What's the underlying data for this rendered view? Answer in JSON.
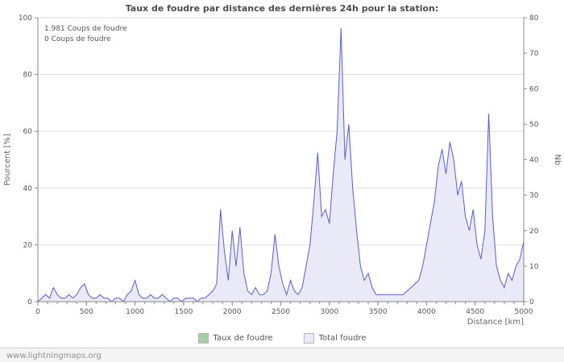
{
  "title": "Taux de foudre par distance des dernières 24h pour la station:",
  "annotations": {
    "line1": "1.981  Coups de foudre",
    "line2": "0  Coups de foudre"
  },
  "legend": [
    {
      "label": "Taux de foudre",
      "color": "#a6cfa6"
    },
    {
      "label": "Total foudre",
      "color": "#e9e9f7"
    }
  ],
  "footer": {
    "link": "www.lightningmaps.org"
  },
  "chart_data": {
    "type": "area",
    "title": "Taux de foudre par distance des dernières 24h pour la station:",
    "xlabel": "Distance   [km]",
    "ylabel_left": "Pourcent   [%]",
    "ylabel_right": "Nb",
    "x_range": [
      0,
      5000
    ],
    "x_tick_step": 500,
    "x_minor_tick_step": 100,
    "y_left_range": [
      0,
      100
    ],
    "y_left_tick_step": 20,
    "y_right_range": [
      0,
      80
    ],
    "y_right_tick_step": 10,
    "grid": true,
    "legend_position": "bottom",
    "colors": {
      "grid": "#dddddd",
      "axis": "#888888"
    },
    "series": [
      {
        "name": "Taux de foudre",
        "axis": "left",
        "color": "#a6cfa6",
        "constant_value": 0
      },
      {
        "name": "Total foudre",
        "axis": "right",
        "fill": "#e9e9f7",
        "line": "#5c5ccd",
        "x_start": 0,
        "x_step": 40,
        "values": [
          0,
          1,
          2,
          1,
          4,
          2,
          1,
          1,
          2,
          1,
          2,
          4,
          5,
          2,
          1,
          1,
          2,
          1,
          1,
          0,
          1,
          1,
          0,
          2,
          3,
          6,
          2,
          1,
          1,
          2,
          1,
          1,
          2,
          1,
          0,
          1,
          1,
          0,
          1,
          1,
          1,
          0,
          1,
          1,
          2,
          3,
          5,
          26,
          14,
          6,
          20,
          10,
          21,
          8,
          3,
          2,
          4,
          2,
          2,
          3,
          8,
          19,
          10,
          5,
          2,
          6,
          3,
          2,
          4,
          10,
          16,
          28,
          42,
          24,
          26,
          22,
          36,
          48,
          77,
          40,
          50,
          32,
          20,
          10,
          6,
          8,
          4,
          2,
          2,
          2,
          2,
          2,
          2,
          2,
          2,
          3,
          4,
          5,
          6,
          10,
          16,
          22,
          28,
          38,
          43,
          36,
          45,
          40,
          30,
          34,
          24,
          20,
          26,
          16,
          12,
          20,
          53,
          24,
          10,
          6,
          4,
          8,
          6,
          10,
          12,
          17
        ]
      }
    ]
  }
}
